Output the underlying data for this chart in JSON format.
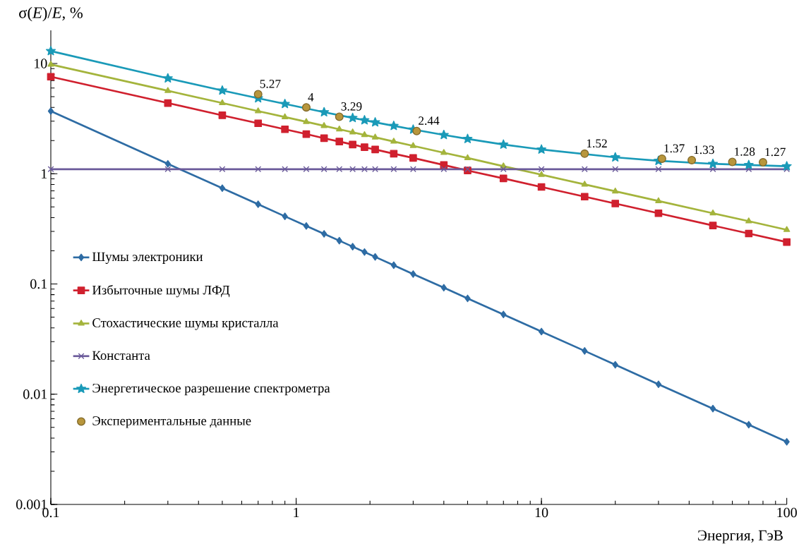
{
  "chart_data": {
    "type": "line",
    "ylabel": "σ(*E*)/*E*, %",
    "xlabel": "Энергия, ГэВ",
    "log": "xy",
    "legend": "left",
    "xlim": [
      0.1,
      100
    ],
    "xticks": [
      0.1,
      1,
      10,
      100
    ],
    "ylim": [
      0.001,
      20
    ],
    "yticks": [
      0.001,
      0.01,
      0.1,
      1,
      10
    ],
    "x": [
      0.1,
      0.3,
      0.5,
      0.7,
      0.9,
      1.1,
      1.3,
      1.5,
      1.7,
      1.9,
      2.1,
      2.5,
      3,
      4,
      5,
      7,
      10,
      15,
      20,
      30,
      50,
      70,
      100
    ],
    "series": [
      {
        "name": "Шумы электроники",
        "color": "#2e6ca4",
        "marker": "diamond",
        "values": [
          3.7,
          1.23,
          0.74,
          0.529,
          0.411,
          0.336,
          0.285,
          0.247,
          0.218,
          0.195,
          0.176,
          0.148,
          0.123,
          0.0925,
          0.074,
          0.0529,
          0.037,
          0.0247,
          0.0185,
          0.0123,
          0.0074,
          0.00529,
          0.0037
        ]
      },
      {
        "name": "Избыточные шумы ЛФД",
        "color": "#d0202e",
        "marker": "square",
        "values": [
          7.59,
          4.38,
          3.39,
          2.87,
          2.53,
          2.29,
          2.1,
          1.96,
          1.84,
          1.74,
          1.66,
          1.52,
          1.39,
          1.2,
          1.07,
          0.907,
          0.759,
          0.62,
          0.537,
          0.438,
          0.339,
          0.287,
          0.24
        ]
      },
      {
        "name": "Стохастические шумы кристалла",
        "color": "#a4b43c",
        "marker": "triangle",
        "values": [
          9.8,
          5.66,
          4.38,
          3.7,
          3.27,
          2.96,
          2.72,
          2.53,
          2.38,
          2.25,
          2.14,
          1.96,
          1.79,
          1.55,
          1.39,
          1.17,
          0.98,
          0.8,
          0.693,
          0.566,
          0.438,
          0.371,
          0.31
        ]
      },
      {
        "name": "Константа",
        "color": "#6a5a9a",
        "marker": "cross",
        "values": [
          1.1,
          1.1,
          1.1,
          1.1,
          1.1,
          1.1,
          1.1,
          1.1,
          1.1,
          1.1,
          1.1,
          1.1,
          1.1,
          1.1,
          1.1,
          1.1,
          1.1,
          1.1,
          1.1,
          1.1,
          1.1,
          1.1,
          1.1
        ]
      },
      {
        "name": "Энергетическое разрешение спектрометра",
        "color": "#1a9ab8",
        "marker": "star",
        "x": [
          0.1,
          0.3,
          0.5,
          0.7,
          0.9,
          1.3,
          1.7,
          1.9,
          2.1,
          2.5,
          3,
          4,
          5,
          7,
          10,
          20,
          30,
          50,
          70,
          100
        ],
        "values": [
          12.98,
          7.34,
          5.69,
          4.84,
          4.3,
          3.62,
          3.21,
          3.06,
          2.93,
          2.72,
          2.52,
          2.25,
          2.07,
          1.84,
          1.66,
          1.41,
          1.31,
          1.23,
          1.2,
          1.17
        ]
      },
      {
        "name": "Экспериментальные данные",
        "type": "scatter",
        "color": "#b8963c",
        "marker": "circle",
        "x": [
          0.7,
          1.1,
          1.5,
          3.1,
          15,
          31,
          41,
          60,
          80
        ],
        "values": [
          5.27,
          4,
          3.29,
          2.44,
          1.52,
          1.37,
          1.33,
          1.28,
          1.27
        ],
        "value_labels": [
          "5.27",
          "4",
          "3.29",
          "2.44",
          "1.52",
          "1.37",
          "1.33",
          "1.28",
          "1.27"
        ]
      }
    ]
  }
}
